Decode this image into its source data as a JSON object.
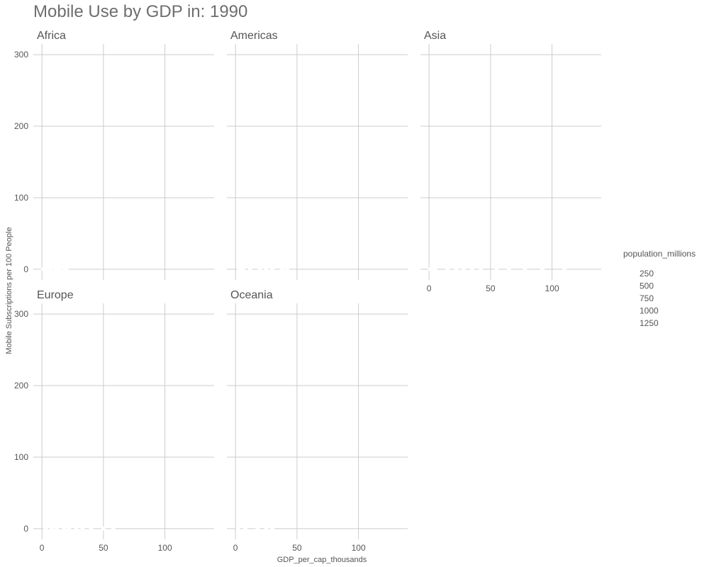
{
  "chart_data": {
    "type": "scatter",
    "title": "Mobile Use by GDP in: 1990",
    "xlabel": "GDP_per_cap_thousands",
    "ylabel": "Mobile Subscriptions per 100 People",
    "xlim": [
      -7,
      140
    ],
    "ylim": [
      -15,
      315
    ],
    "x_ticks": [
      0,
      50,
      100
    ],
    "y_ticks": [
      0,
      100,
      200,
      300
    ],
    "grid": true,
    "facets": [
      {
        "name": "Africa",
        "points": [
          {
            "x": 1,
            "y": 0
          },
          {
            "x": 2,
            "y": 0
          },
          {
            "x": 4,
            "y": 0
          },
          {
            "x": 7,
            "y": 0
          },
          {
            "x": 11,
            "y": 0
          },
          {
            "x": 14,
            "y": 0
          },
          {
            "x": 18,
            "y": 0
          },
          {
            "x": 20,
            "y": 0
          }
        ]
      },
      {
        "name": "Americas",
        "points": [
          {
            "x": 3,
            "y": 0
          },
          {
            "x": 6,
            "y": 0
          },
          {
            "x": 12,
            "y": 0
          },
          {
            "x": 20,
            "y": 0
          },
          {
            "x": 25,
            "y": 0
          },
          {
            "x": 30,
            "y": 0
          },
          {
            "x": 38,
            "y": 0
          },
          {
            "x": 42,
            "y": 0
          }
        ]
      },
      {
        "name": "Asia",
        "points": [
          {
            "x": 1,
            "y": 0
          },
          {
            "x": 3,
            "y": 0
          },
          {
            "x": 5,
            "y": 0
          },
          {
            "x": 15,
            "y": 0
          },
          {
            "x": 22,
            "y": 0
          },
          {
            "x": 28,
            "y": 0
          },
          {
            "x": 35,
            "y": 0
          },
          {
            "x": 42,
            "y": 0
          },
          {
            "x": 55,
            "y": 0
          },
          {
            "x": 65,
            "y": 0
          },
          {
            "x": 78,
            "y": 0
          },
          {
            "x": 92,
            "y": 0
          },
          {
            "x": 110,
            "y": 0
          }
        ]
      },
      {
        "name": "Europe",
        "points": [
          {
            "x": 3,
            "y": 0
          },
          {
            "x": 8,
            "y": 0
          },
          {
            "x": 12,
            "y": 0
          },
          {
            "x": 18,
            "y": 0
          },
          {
            "x": 22,
            "y": 0
          },
          {
            "x": 28,
            "y": 0
          },
          {
            "x": 33,
            "y": 0
          },
          {
            "x": 40,
            "y": 0
          },
          {
            "x": 50,
            "y": 0
          },
          {
            "x": 58,
            "y": 0
          }
        ]
      },
      {
        "name": "Oceania",
        "points": [
          {
            "x": 2,
            "y": 0
          },
          {
            "x": 8,
            "y": 0
          },
          {
            "x": 18,
            "y": 0
          },
          {
            "x": 25,
            "y": 0
          },
          {
            "x": 30,
            "y": 0
          }
        ]
      }
    ],
    "legend": {
      "title": "population_millions",
      "placement": "right",
      "entries": [
        "250",
        "500",
        "750",
        "1000",
        "1250"
      ]
    },
    "colors": {
      "grid": "#cccccc",
      "point": "#ffffff",
      "text": "#555555",
      "title": "#6e6e6e"
    }
  }
}
